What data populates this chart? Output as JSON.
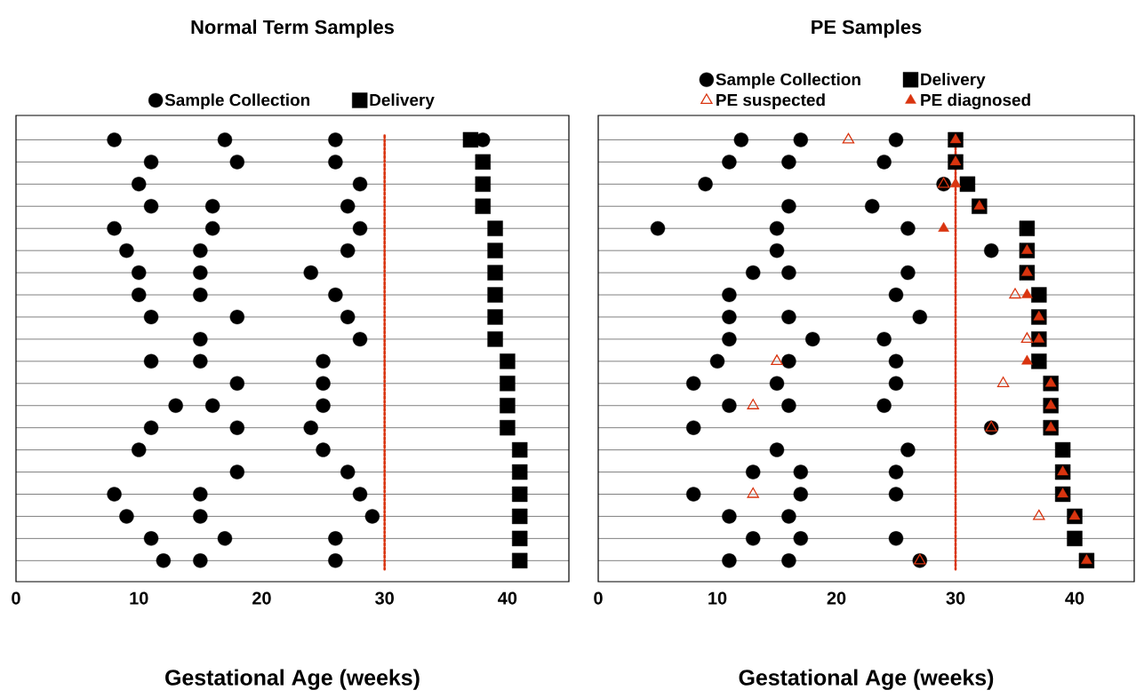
{
  "chart_data": [
    {
      "type": "scatter",
      "orientation": "horizontal",
      "title": "Normal  Term Samples",
      "xlabel": "Gestational Age (weeks)",
      "categories": [
        null,
        null,
        null,
        null,
        null,
        null,
        null,
        null,
        null,
        null,
        null,
        null,
        null,
        null,
        null,
        null,
        null,
        null,
        null,
        null
      ],
      "xlim": [
        0,
        45
      ],
      "xticks": [
        0,
        10,
        20,
        30,
        40
      ],
      "grid": "y",
      "legend": "top",
      "ref_lines": [
        {
          "axis": "x",
          "value": 30,
          "color": "#d9340f",
          "line_style": "dotted"
        }
      ],
      "series": [
        {
          "name": "Sample Collection",
          "color": "#000000",
          "marker": "circle",
          "values": [
            8,
            11,
            10,
            11,
            8,
            9,
            10,
            10,
            11,
            15,
            11,
            18,
            13,
            11,
            10,
            18,
            8,
            9,
            11,
            12
          ]
        },
        {
          "color": "#000000",
          "marker": "circle",
          "values": [
            17,
            18,
            28,
            16,
            16,
            15,
            15,
            15,
            18,
            28,
            15,
            25,
            16,
            18,
            25,
            27,
            15,
            15,
            17,
            15
          ]
        },
        {
          "color": "#000000",
          "marker": "circle",
          "values": [
            26,
            26,
            null,
            27,
            28,
            27,
            24,
            26,
            27,
            null,
            25,
            null,
            25,
            24,
            null,
            null,
            28,
            29,
            26,
            26
          ]
        },
        {
          "color": "#000000",
          "marker": "circle",
          "values": [
            38,
            null,
            null,
            null,
            null,
            null,
            null,
            null,
            null,
            null,
            null,
            null,
            null,
            null,
            null,
            null,
            null,
            null,
            null,
            null
          ]
        },
        {
          "name": "Delivery",
          "color": "#000000",
          "marker": "square",
          "values": [
            37,
            38,
            38,
            38,
            39,
            39,
            39,
            39,
            39,
            39,
            40,
            40,
            40,
            40,
            41,
            41,
            41,
            41,
            41,
            41
          ]
        }
      ]
    },
    {
      "type": "scatter",
      "orientation": "horizontal",
      "title": "PE Samples",
      "xlabel": "Gestational Age (weeks)",
      "categories": [
        null,
        null,
        null,
        null,
        null,
        null,
        null,
        null,
        null,
        null,
        null,
        null,
        null,
        null,
        null,
        null,
        null,
        null,
        null,
        null
      ],
      "xlim": [
        0,
        45
      ],
      "xticks": [
        0,
        10,
        20,
        30,
        40
      ],
      "grid": "y",
      "legend": "top",
      "ref_lines": [
        {
          "axis": "x",
          "value": 30,
          "color": "#d9340f",
          "line_style": "dotted"
        }
      ],
      "series": [
        {
          "name": "Sample Collection",
          "color": "#000000",
          "marker": "circle",
          "values": [
            12,
            11,
            9,
            16,
            5,
            15,
            13,
            11,
            11,
            11,
            10,
            8,
            11,
            8,
            15,
            13,
            8,
            11,
            13,
            11
          ]
        },
        {
          "color": "#000000",
          "marker": "circle",
          "values": [
            17,
            16,
            29,
            23,
            15,
            33,
            16,
            25,
            16,
            18,
            16,
            15,
            16,
            33,
            26,
            17,
            17,
            16,
            17,
            16
          ]
        },
        {
          "color": "#000000",
          "marker": "circle",
          "values": [
            25,
            24,
            null,
            null,
            26,
            null,
            26,
            null,
            27,
            24,
            25,
            25,
            24,
            null,
            null,
            25,
            25,
            null,
            25,
            27
          ]
        },
        {
          "name": "Delivery",
          "color": "#000000",
          "marker": "square",
          "values": [
            30,
            30,
            31,
            32,
            36,
            36,
            36,
            37,
            37,
            37,
            37,
            38,
            38,
            38,
            39,
            39,
            39,
            40,
            40,
            41
          ]
        },
        {
          "name": "PE suspected",
          "color": "#d9340f",
          "marker": "triangle-open",
          "values": [
            21,
            null,
            29,
            null,
            null,
            null,
            null,
            35,
            null,
            36,
            15,
            34,
            13,
            33,
            null,
            null,
            13,
            37,
            null,
            27
          ]
        },
        {
          "name": "PE diagnosed",
          "color": "#d9340f",
          "marker": "triangle",
          "values": [
            30,
            30,
            30,
            32,
            29,
            36,
            36,
            36,
            37,
            37,
            36,
            38,
            38,
            38,
            null,
            39,
            39,
            40,
            null,
            41
          ]
        }
      ]
    }
  ]
}
